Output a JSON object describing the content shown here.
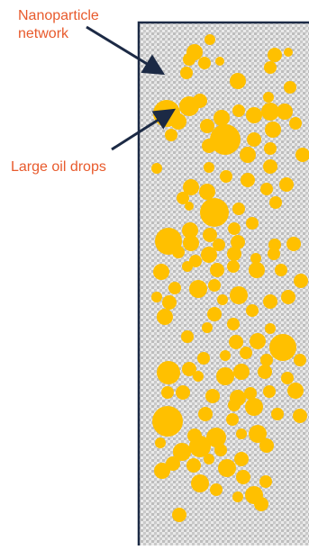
{
  "labels": {
    "network": "Nanoparticle network",
    "drops": "Large oil drops"
  },
  "colors": {
    "label": "#e85a2c",
    "arrow": "#1c2a45",
    "border": "#1c2a45",
    "drop": "#ffc000",
    "pattern_dark": "#b8b8b8",
    "pattern_light": "#eaeaea",
    "background": "#ffffff"
  }
}
